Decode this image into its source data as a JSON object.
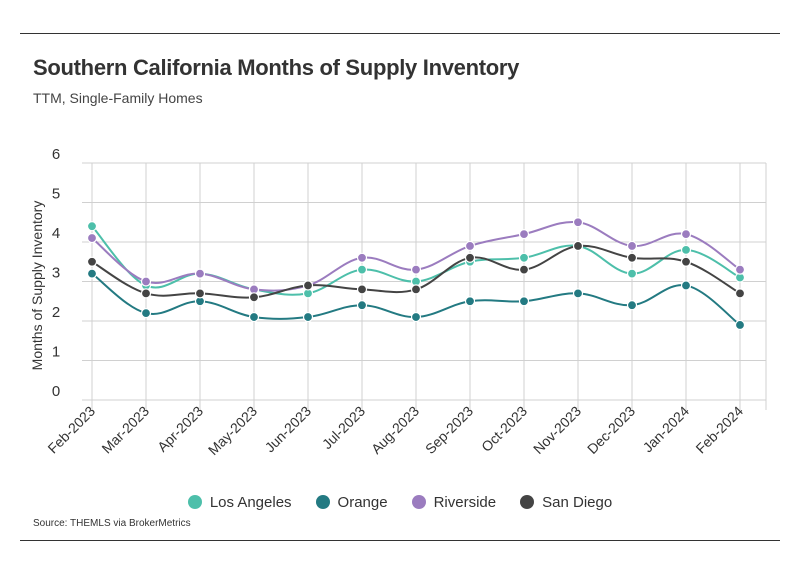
{
  "header": {
    "title": "Southern California Months of Supply Inventory",
    "subtitle": "TTM, Single-Family Homes"
  },
  "footer": {
    "source": "Source:  THEMLS via BrokerMetrics"
  },
  "chart_data": {
    "type": "line",
    "title": "Southern California Months of Supply Inventory",
    "subtitle": "TTM, Single-Family Homes",
    "xlabel": "",
    "ylabel": "Months of Supply Inventory",
    "ylim": [
      0,
      6
    ],
    "yticks": [
      "0",
      "1",
      "2",
      "3",
      "4",
      "5",
      "6"
    ],
    "grid": true,
    "legend_position": "bottom",
    "categories": [
      "Feb-2023",
      "Mar-2023",
      "Apr-2023",
      "May-2023",
      "Jun-2023",
      "Jul-2023",
      "Aug-2023",
      "Sep-2023",
      "Oct-2023",
      "Nov-2023",
      "Dec-2023",
      "Jan-2024",
      "Feb-2024"
    ],
    "series": [
      {
        "name": "Los Angeles",
        "color": "#4dbfaa",
        "values": [
          4.4,
          2.9,
          3.2,
          2.8,
          2.7,
          3.3,
          3.0,
          3.5,
          3.6,
          3.9,
          3.2,
          3.8,
          3.1
        ]
      },
      {
        "name": "Orange",
        "color": "#237a82",
        "values": [
          3.2,
          2.2,
          2.5,
          2.1,
          2.1,
          2.4,
          2.1,
          2.5,
          2.5,
          2.7,
          2.4,
          2.9,
          1.9
        ]
      },
      {
        "name": "Riverside",
        "color": "#9b7cbf",
        "values": [
          4.1,
          3.0,
          3.2,
          2.8,
          2.9,
          3.6,
          3.3,
          3.9,
          4.2,
          4.5,
          3.9,
          4.2,
          3.3
        ]
      },
      {
        "name": "San Diego",
        "color": "#444444",
        "values": [
          3.5,
          2.7,
          2.7,
          2.6,
          2.9,
          2.8,
          2.8,
          3.6,
          3.3,
          3.9,
          3.6,
          3.5,
          2.7
        ]
      }
    ]
  }
}
